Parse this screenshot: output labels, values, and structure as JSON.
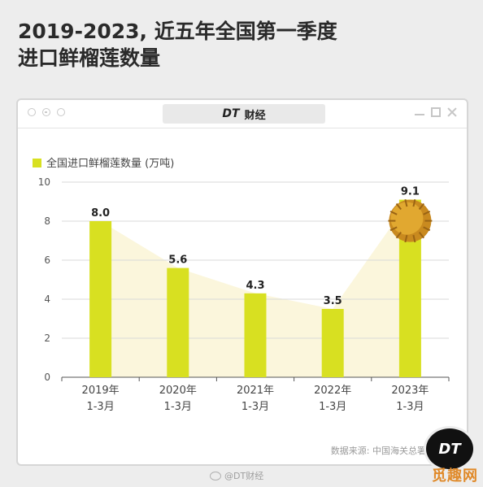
{
  "headline": {
    "line1": "2019-2023, 近五年全国第一季度",
    "line2": "进口鲜榴莲数量"
  },
  "window": {
    "brand_logo": "DT",
    "brand_name": "财经"
  },
  "chart_data": {
    "type": "bar",
    "categories": [
      "2019年\n1-3月",
      "2020年\n1-3月",
      "2021年\n1-3月",
      "2022年\n1-3月",
      "2023年\n1-3月"
    ],
    "series": [
      {
        "name": "全国进口鲜榴莲数量 (万吨)",
        "values": [
          8.0,
          5.6,
          4.3,
          3.5,
          9.1
        ]
      }
    ],
    "value_labels": [
      "8.0",
      "5.6",
      "4.3",
      "3.5",
      "9.1"
    ],
    "yticks": [
      0,
      2,
      4,
      6,
      8,
      10
    ],
    "ylim": [
      0,
      10
    ],
    "grid": true,
    "legend_position": "top-left",
    "colors": {
      "bar": "#d8e021",
      "legend": "#d8e021",
      "area": "#fbf6dc",
      "grid": "#d9d9d9",
      "axis": "#555555"
    }
  },
  "footer": {
    "source": "数据来源: 中国海关总署统计数据",
    "badge": "DT",
    "weibo": "@DT财经",
    "site_watermark": "觅趣网"
  }
}
